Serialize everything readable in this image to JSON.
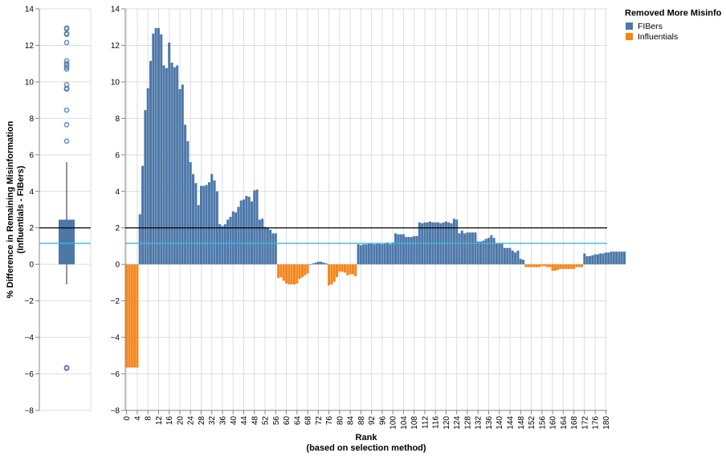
{
  "chart_data": {
    "type": "bar",
    "ylabel_line1": "% Difference in Remaining Misinformation",
    "ylabel_line2": "(Influentials - FIBers)",
    "xlabel_line1": "Rank",
    "xlabel_line2": "(based on selection method)",
    "ylim": [
      -8,
      14
    ],
    "yticks": [
      -8,
      -6,
      -4,
      -2,
      0,
      2,
      4,
      6,
      8,
      10,
      12,
      14
    ],
    "xlim": [
      0,
      181
    ],
    "xticks": [
      0,
      4,
      8,
      12,
      16,
      20,
      24,
      28,
      32,
      36,
      40,
      44,
      48,
      52,
      56,
      60,
      64,
      68,
      72,
      76,
      80,
      84,
      88,
      92,
      96,
      100,
      104,
      108,
      112,
      116,
      120,
      124,
      128,
      132,
      136,
      140,
      144,
      148,
      152,
      156,
      160,
      164,
      168,
      172,
      176,
      180
    ],
    "grid": true,
    "legend": {
      "title": "Removed More Misinfo",
      "position": "top-right",
      "items": [
        {
          "label": "FIBers",
          "color": "#4c78a8"
        },
        {
          "label": "Influentials",
          "color": "#f58518"
        }
      ]
    },
    "reference_lines": [
      {
        "y": 2.0,
        "color": "#000000"
      },
      {
        "y": 1.15,
        "color": "#3cb8e0"
      }
    ],
    "boxplot": {
      "min": -1.1,
      "q1": 0.0,
      "median": 2.0,
      "q3": 2.45,
      "max": 5.6,
      "outliers": [
        12.95,
        12.9,
        12.65,
        12.6,
        12.15,
        11.15,
        11.0,
        10.9,
        10.8,
        10.7,
        9.85,
        9.65,
        9.6,
        8.45,
        7.65,
        6.75,
        -5.65,
        -5.7
      ],
      "color": "#4c78a8"
    },
    "bar_values": [
      -5.65,
      -5.65,
      -5.65,
      -5.65,
      -5.65,
      2.75,
      5.4,
      8.45,
      9.65,
      11.15,
      12.65,
      12.95,
      12.95,
      12.6,
      10.9,
      10.75,
      12.15,
      11.05,
      10.8,
      10.9,
      9.6,
      9.85,
      7.65,
      6.75,
      5.6,
      4.95,
      4.45,
      3.25,
      4.3,
      4.3,
      4.35,
      4.5,
      4.95,
      4.6,
      4.0,
      2.2,
      2.1,
      2.2,
      2.45,
      2.6,
      2.9,
      2.85,
      3.15,
      3.5,
      3.55,
      3.75,
      3.7,
      3.45,
      4.05,
      4.1,
      2.45,
      2.5,
      2.05,
      2.0,
      1.9,
      1.7,
      1.7,
      -0.75,
      -0.7,
      -0.9,
      -1.05,
      -1.1,
      -1.1,
      -1.1,
      -1.05,
      -0.8,
      -0.7,
      -0.6,
      -0.5,
      0.0,
      0.05,
      0.1,
      0.15,
      0.15,
      0.1,
      0.05,
      -1.15,
      -1.1,
      -0.95,
      -0.7,
      -0.4,
      -0.4,
      -0.45,
      -0.6,
      -0.55,
      -0.55,
      -0.65,
      1.1,
      1.05,
      1.1,
      1.1,
      1.15,
      1.15,
      1.1,
      1.15,
      1.15,
      1.1,
      1.15,
      1.2,
      1.1,
      1.2,
      1.7,
      1.65,
      1.65,
      1.65,
      1.5,
      1.5,
      1.5,
      1.55,
      1.55,
      2.3,
      2.25,
      2.3,
      2.3,
      2.35,
      2.3,
      2.3,
      2.3,
      2.25,
      2.3,
      2.35,
      2.3,
      2.25,
      2.5,
      2.45,
      1.7,
      1.85,
      1.7,
      1.75,
      1.75,
      1.75,
      1.75,
      1.25,
      1.25,
      1.3,
      1.4,
      1.45,
      1.6,
      1.45,
      1.15,
      1.15,
      1.15,
      0.9,
      0.9,
      0.9,
      0.75,
      0.65,
      0.75,
      0.3,
      0.25,
      -0.15,
      -0.15,
      -0.15,
      -0.15,
      -0.15,
      -0.15,
      -0.1,
      -0.1,
      -0.15,
      -0.15,
      -0.35,
      -0.35,
      -0.3,
      -0.25,
      -0.25,
      -0.25,
      -0.25,
      -0.25,
      -0.25,
      -0.15,
      -0.15,
      -0.15,
      0.6,
      0.45,
      0.45,
      0.5,
      0.55,
      0.55,
      0.6,
      0.6,
      0.65,
      0.65,
      0.7,
      0.7,
      0.7,
      0.7,
      0.7,
      0.7
    ]
  }
}
